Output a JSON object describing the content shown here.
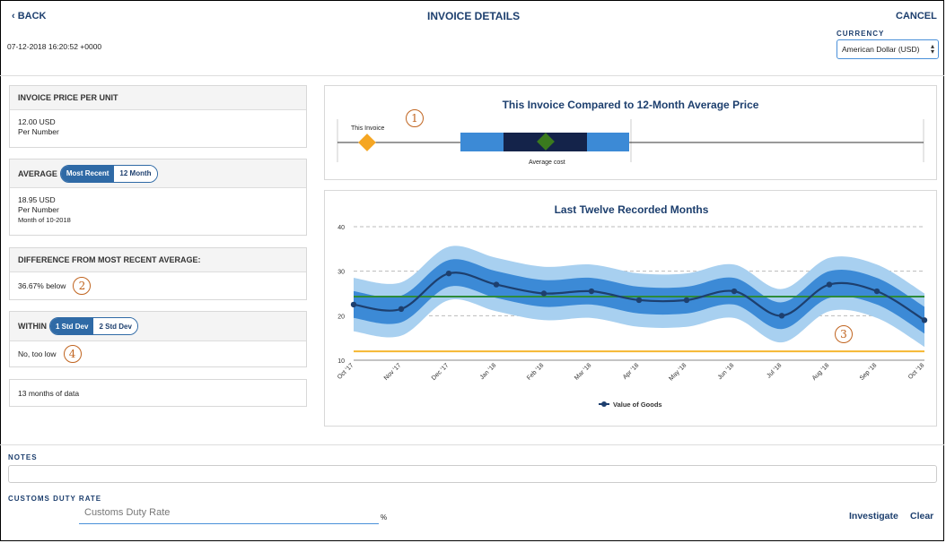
{
  "header": {
    "back_label": "‹ BACK",
    "title": "INVOICE DETAILS",
    "cancel_label": "CANCEL",
    "timestamp": "07-12-2018 16:20:52 +0000",
    "currency_label": "CURRENCY",
    "currency_value": "American Dollar (USD)"
  },
  "cards": {
    "price": {
      "title": "INVOICE PRICE PER UNIT",
      "line1": "12.00 USD",
      "line2": "Per Number"
    },
    "average": {
      "title": "AVERAGE",
      "toggle_on": "Most Recent",
      "toggle_off": "12 Month",
      "line1": "18.95 USD",
      "line2": "Per Number",
      "line3": "Month of 10-2018"
    },
    "difference": {
      "title": "DIFFERENCE FROM MOST RECENT AVERAGE:",
      "value": "36.67% below",
      "marker": "2"
    },
    "within": {
      "title": "WITHIN",
      "toggle_on": "1 Std Dev",
      "toggle_off": "2 Std Dev",
      "value": "No, too low",
      "marker": "4"
    },
    "months": {
      "value": "13 months of data"
    }
  },
  "comparison": {
    "title": "This Invoice Compared to 12-Month Average Price",
    "marker": "1",
    "invoice_label": "This Invoice",
    "average_label": "Average cost"
  },
  "trend_marker": "3",
  "chart_data": {
    "type": "line",
    "title": "Last Twelve Recorded Months",
    "categories": [
      "Oct '17",
      "Nov '17",
      "Dec '17",
      "Jan '18",
      "Feb '18",
      "Mar '18",
      "Apr '18",
      "May '18",
      "Jun '18",
      "Jul '18",
      "Aug '18",
      "Sep '18",
      "Oct '18"
    ],
    "series": [
      {
        "name": "Value of Goods",
        "values": [
          22.5,
          21.5,
          29.5,
          27,
          25,
          25.5,
          23.5,
          23.5,
          25.5,
          20,
          27,
          25.5,
          19
        ]
      }
    ],
    "band_1sd": [
      3,
      3,
      3,
      3,
      3,
      3,
      3,
      3,
      3,
      3,
      3,
      3,
      3
    ],
    "band_2sd": [
      6,
      6,
      6,
      6,
      6,
      6,
      6,
      6,
      6,
      6,
      6,
      6,
      6
    ],
    "reference_lines": [
      {
        "value": 24.3,
        "color": "#2e8b3a"
      },
      {
        "value": 12,
        "color": "#f5b731"
      }
    ],
    "ylim": [
      10,
      40
    ],
    "yticks": [
      10,
      20,
      30,
      40
    ],
    "grid": true,
    "legend_position": "bottom-center",
    "colors": {
      "line": "#1d3f6e",
      "band_inner": "#3c8ad6",
      "band_outer": "#a8d0f0"
    }
  },
  "notes": {
    "label": "NOTES"
  },
  "customs": {
    "label": "CUSTOMS DUTY RATE",
    "placeholder": "Customs Duty Rate",
    "unit": "%"
  },
  "actions": {
    "investigate": "Investigate",
    "clear": "Clear"
  }
}
